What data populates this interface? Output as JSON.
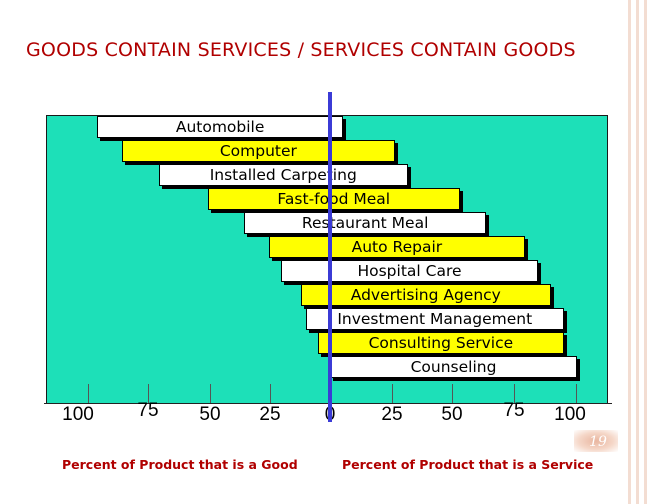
{
  "slide": {
    "title": "GOODS CONTAIN SERVICES / SERVICES CONTAIN GOODS",
    "page_number": "19"
  },
  "colors": {
    "panel": "#1de0b8",
    "goods_bar": "#ffffff",
    "service_bar": "#ffff00",
    "center_line": "#3b3bd6",
    "title": "#b00000",
    "frame_edge": "#f0d3c6"
  },
  "items": [
    {
      "label": "Automobile",
      "goods_pct": 95,
      "service_pct": 5
    },
    {
      "label": "Computer",
      "goods_pct": 85,
      "service_pct": 25
    },
    {
      "label": "Installed Carpeting",
      "goods_pct": 70,
      "service_pct": 30
    },
    {
      "label": "Fast-food Meal",
      "goods_pct": 50,
      "service_pct": 50
    },
    {
      "label": "Restaurant Meal",
      "goods_pct": 35,
      "service_pct": 60
    },
    {
      "label": "Auto Repair",
      "goods_pct": 25,
      "service_pct": 75
    },
    {
      "label": "Hospital Care",
      "goods_pct": 20,
      "service_pct": 80
    },
    {
      "label": "Advertising Agency",
      "goods_pct": 12,
      "service_pct": 85
    },
    {
      "label": "Investment Management",
      "goods_pct": 10,
      "service_pct": 90
    },
    {
      "label": "Consulting Service",
      "goods_pct": 5,
      "service_pct": 90
    },
    {
      "label": "Counseling",
      "goods_pct": 0,
      "service_pct": 95
    }
  ],
  "axis": {
    "ticks": [
      "100",
      "75",
      "50",
      "25",
      "0",
      "25",
      "50",
      "75",
      "100"
    ],
    "left_caption": "Percent of Product that is a Good",
    "right_caption": "Percent of Product that is a Service"
  }
}
